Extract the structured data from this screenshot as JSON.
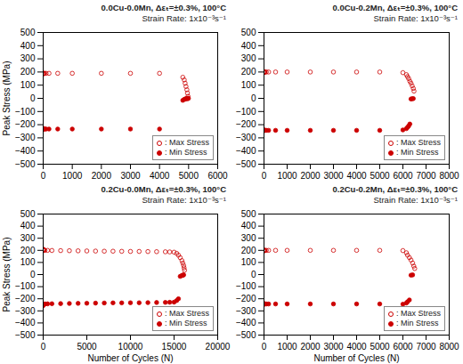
{
  "chart_data": [
    {
      "type": "scatter",
      "title": "0.0Cu-0.0Mn, Δεₜ=±0.3%, 100°C",
      "subtitle": "Strain Rate: 1x10⁻³s⁻¹",
      "ylabel": "Peak Stress (MPa)",
      "xlim": [
        0,
        6000
      ],
      "xticks": [
        0,
        1000,
        2000,
        3000,
        4000,
        5000,
        6000
      ],
      "ylim": [
        -500,
        500
      ],
      "yticks": [
        -500,
        -400,
        -300,
        -200,
        -100,
        0,
        100,
        200,
        300,
        400,
        500
      ],
      "legend": "lower right",
      "series": [
        {
          "name": ": Max Stress",
          "color": "#cc0000",
          "marker": "open_circle",
          "x": [
            1,
            5,
            10,
            20,
            50,
            100,
            200,
            500,
            1000,
            2000,
            3000,
            4000,
            4800,
            4850,
            4880,
            4910,
            4940,
            4960,
            4980,
            4995
          ],
          "values": [
            185,
            188,
            190,
            190,
            190,
            190,
            190,
            190,
            190,
            190,
            190,
            190,
            160,
            140,
            115,
            90,
            65,
            40,
            15,
            0
          ]
        },
        {
          "name": ": Min Stress",
          "color": "#cc0000",
          "marker": "circle",
          "x": [
            1,
            5,
            10,
            20,
            50,
            100,
            200,
            500,
            1000,
            2000,
            3000,
            4000,
            4800,
            4850,
            4880,
            4910,
            4940,
            4960,
            4980
          ],
          "values": [
            -230,
            -233,
            -233,
            -233,
            -233,
            -233,
            -233,
            -233,
            -233,
            -233,
            -233,
            -233,
            -15,
            -8,
            -5,
            -3,
            -2,
            -1,
            -1
          ]
        }
      ]
    },
    {
      "type": "scatter",
      "title": "0.0Cu-0.2Mn, Δεₜ=±0.3%, 100°C",
      "subtitle": "Strain Rate: 1x10⁻³s⁻¹",
      "xlim": [
        0,
        8000
      ],
      "xticks": [
        0,
        1000,
        2000,
        3000,
        4000,
        5000,
        6000,
        7000,
        8000
      ],
      "ylim": [
        -500,
        500
      ],
      "yticks": [
        -500,
        -400,
        -300,
        -200,
        -100,
        0,
        100,
        200,
        300,
        400,
        500
      ],
      "legend": "lower right",
      "series": [
        {
          "name": ": Max Stress",
          "color": "#cc0000",
          "marker": "open_circle",
          "x": [
            1,
            5,
            10,
            20,
            50,
            100,
            200,
            500,
            1000,
            2000,
            3000,
            4000,
            5000,
            6000,
            6150,
            6200,
            6250,
            6300,
            6350,
            6400,
            6450,
            6480
          ],
          "values": [
            195,
            200,
            200,
            200,
            200,
            200,
            200,
            200,
            200,
            200,
            200,
            200,
            200,
            195,
            180,
            165,
            150,
            130,
            115,
            95,
            75,
            55
          ]
        },
        {
          "name": ": Min Stress",
          "color": "#cc0000",
          "marker": "circle",
          "x": [
            1,
            5,
            10,
            20,
            50,
            100,
            200,
            500,
            1000,
            2000,
            3000,
            4000,
            5000,
            6000,
            6150,
            6200,
            6250,
            6300,
            6350,
            6400,
            6450
          ],
          "values": [
            -240,
            -243,
            -243,
            -243,
            -243,
            -243,
            -243,
            -243,
            -243,
            -243,
            -243,
            -243,
            -243,
            -240,
            -230,
            -220,
            -210,
            -195,
            -5,
            -3,
            -2
          ]
        }
      ]
    },
    {
      "type": "scatter",
      "title": "0.2Cu-0.0Mn, Δεₜ=±0.3%, 100°C",
      "subtitle": "Strain Rate: 1x10⁻³s⁻¹",
      "xlabel": "Number of Cycles (N)",
      "ylabel": "Peak Stress (MPa)",
      "xlim": [
        0,
        20000
      ],
      "xticks": [
        0,
        5000,
        10000,
        15000,
        20000
      ],
      "ylim": [
        -500,
        500
      ],
      "yticks": [
        -500,
        -400,
        -300,
        -200,
        -100,
        0,
        100,
        200,
        300,
        400,
        500
      ],
      "legend": "lower right",
      "series": [
        {
          "name": ": Max Stress",
          "color": "#cc0000",
          "marker": "open_circle",
          "x": [
            1,
            5,
            10,
            20,
            50,
            100,
            200,
            500,
            1000,
            2000,
            3000,
            4000,
            5000,
            6000,
            7000,
            8000,
            9000,
            10000,
            11000,
            12000,
            13000,
            14000,
            14500,
            15000,
            15300,
            15500,
            15700,
            15900,
            16000,
            16100,
            16150,
            16200
          ],
          "values": [
            205,
            208,
            208,
            206,
            203,
            200,
            200,
            200,
            199,
            198,
            197,
            196,
            195,
            194,
            193,
            193,
            192,
            191,
            191,
            190,
            189,
            188,
            187,
            185,
            175,
            160,
            140,
            115,
            95,
            75,
            55,
            35
          ]
        },
        {
          "name": ": Min Stress",
          "color": "#cc0000",
          "marker": "circle",
          "x": [
            1,
            5,
            10,
            20,
            50,
            100,
            200,
            500,
            1000,
            2000,
            3000,
            4000,
            5000,
            6000,
            7000,
            8000,
            9000,
            10000,
            11000,
            12000,
            13000,
            14000,
            14500,
            15000,
            15300,
            15500,
            15700,
            15900,
            16000,
            16100
          ],
          "values": [
            -245,
            -255,
            -255,
            -252,
            -248,
            -245,
            -243,
            -242,
            -241,
            -240,
            -239,
            -238,
            -237,
            -236,
            -235,
            -234,
            -234,
            -233,
            -233,
            -232,
            -231,
            -230,
            -229,
            -228,
            -215,
            -200,
            -15,
            -8,
            -5,
            -3
          ]
        }
      ]
    },
    {
      "type": "scatter",
      "title": "0.2Cu-0.2Mn, Δεₜ=±0.3%, 100°C",
      "subtitle": "Strain Rate: 1x10⁻³s⁻¹",
      "xlabel": "Number of Cycles (N)",
      "xlim": [
        0,
        8000
      ],
      "xticks": [
        0,
        1000,
        2000,
        3000,
        4000,
        5000,
        6000,
        7000,
        8000
      ],
      "ylim": [
        -500,
        500
      ],
      "yticks": [
        -500,
        -400,
        -300,
        -200,
        -100,
        0,
        100,
        200,
        300,
        400,
        500
      ],
      "legend": "lower right",
      "series": [
        {
          "name": ": Max Stress",
          "color": "#cc0000",
          "marker": "open_circle",
          "x": [
            1,
            5,
            10,
            20,
            50,
            100,
            200,
            500,
            1000,
            2000,
            3000,
            4000,
            5000,
            6000,
            6150,
            6200,
            6280,
            6350,
            6420,
            6470,
            6510
          ],
          "values": [
            195,
            200,
            200,
            200,
            200,
            200,
            200,
            200,
            200,
            200,
            200,
            200,
            200,
            198,
            180,
            160,
            140,
            120,
            95,
            70,
            50
          ]
        },
        {
          "name": ": Min Stress",
          "color": "#cc0000",
          "marker": "circle",
          "x": [
            1,
            5,
            10,
            20,
            50,
            100,
            200,
            500,
            1000,
            2000,
            3000,
            4000,
            5000,
            6000,
            6150,
            6200,
            6280,
            6350,
            6420
          ],
          "values": [
            -240,
            -243,
            -243,
            -243,
            -243,
            -243,
            -243,
            -243,
            -243,
            -243,
            -243,
            -243,
            -243,
            -245,
            -235,
            -225,
            -210,
            -5,
            -3
          ]
        }
      ]
    }
  ]
}
